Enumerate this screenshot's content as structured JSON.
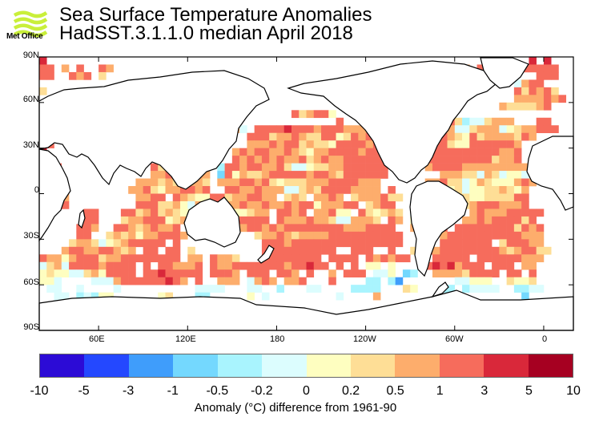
{
  "logo": {
    "text": "Met Office",
    "color": "#c9ef3a"
  },
  "title": {
    "line1": "Sea Surface Temperature Anomalies",
    "line2": "HadSST.3.1.1.0 median April 2018"
  },
  "chart_data": {
    "type": "heatmap",
    "title": "Sea Surface Temperature Anomalies HadSST.3.1.1.0 median April 2018",
    "projection": "equirectangular, centred on 200E (20E to 20E)",
    "lon_range": [
      20,
      380
    ],
    "lat_range": [
      -90,
      90
    ],
    "grid_resolution_deg": 5,
    "lat_ticks": [
      "90N",
      "60N",
      "30N",
      "0",
      "30S",
      "60S",
      "90S"
    ],
    "lon_ticks": [
      "60E",
      "120E",
      "180",
      "120W",
      "60W",
      "0"
    ],
    "colorbar": {
      "label": "Anomaly (°C) difference from 1961-90",
      "boundaries": [
        "-10",
        "-5",
        "-3",
        "-1",
        "-0.5",
        "-0.2",
        "0",
        "0.2",
        "0.5",
        "1",
        "3",
        "5",
        "10"
      ],
      "colors": [
        "#2c0bd6",
        "#2448ff",
        "#3f9dfb",
        "#74d8fe",
        "#a9f4fe",
        "#dcfdfe",
        "#fefec0",
        "#fede96",
        "#fdad6c",
        "#f66c5c",
        "#d9283a",
        "#a60021"
      ]
    },
    "land_color": "#ffffff",
    "missing_color": "#ffffff",
    "cell_codes_legend": "0-b = colorbar class index (0 = -10..-5 ... b = 5..10); '.' = land or missing",
    "rows_north_to_south": [
      "a...........................................................a.....a.a",
      "99.8.9..98...............................................8.99989.99999",
      "99..989.7...............................................89999889...999",
      "................................................................5899..",
      "7...............................................................979897",
      "...........................................8....................8888989",
      ".........................................99.9.................8777789..",
      "..................................978996..7...........................",
      "........................................9........9.....974557888...99.",
      "9.......................9985.9999a99989998888999.....96855788856788999",
      "99..............9...........9997889877996798999.......9876978888798...",
      "99............8.............8889899787769999899......997669999998.....",
      "a...................979...89899889876889999899......9999999999889.....",
      ".9...............99887....9898989889789889999998....9999999997889.....",
      "..9............9787989..49989988975567788999999.....89999888888888....",
      "..6............88978788.39687789999989987999999.......888775875665....",
      ".............8887878887.8889989767778889999888......889775687666898..",
      "...9........88976889989..998898885578799998888.9....97767566778768...",
      "...8.........8899.98766997889988.787.8898.7888977..4886.7766777799..",
      "...9.........999778658889889889889899688899.7899..3877.76789998889..",
      "......99...99789787668.87866788.9989.88966.976787.55699...8988899999..",
      "......99...7889996788..98789999.98889887558887.98.68.9...8898999979...",
      ".....998..998789889...5...7899898999999998889999..8.8.9.999999997989.",
      ".....99..78786889998.........78898788889999999999..8..89999999999888..",
      "....7887567899999.9...........9998999999999999999...8.9999999.799988.",
      "...8998899878.99.99.7.........9999999999..999..9..7798999999998789977.",
      "9886899978899999999.88.9887...99999999.9999.989899...99999.999999888..",
      "5785999989999.9.998889.9889999999899a99.9.9.66.6...79a9a8999.999.88..",
      "6766557869999.99a99999.9998.999.998.9..8.999.556.34..888879999.99.9.",
      "665....5558999999a98.9..888.5898.889...9....44.42.......55666..7667..",
      ".55..5....5..........5555...55..4...55....4444...76...44.45555..4455.",
      "..55.45466......67...44.....6.5.........5....8...................3...",
      "......................................................................",
      "......................................................................",
      "......................................................................",
      "......................................................................"
    ]
  },
  "axes": {
    "lat_labels": [
      "90N",
      "60N",
      "30N",
      "0",
      "30S",
      "60S",
      "90S"
    ],
    "lon_labels": [
      "60E",
      "120E",
      "180",
      "120W",
      "60W",
      "0"
    ]
  },
  "colorbar": {
    "ticks": [
      "-10",
      "-5",
      "-3",
      "-1",
      "-0.5",
      "-0.2",
      "0",
      "0.2",
      "0.5",
      "1",
      "3",
      "5",
      "10"
    ],
    "title": "Anomaly (°C) difference from 1961-90"
  }
}
